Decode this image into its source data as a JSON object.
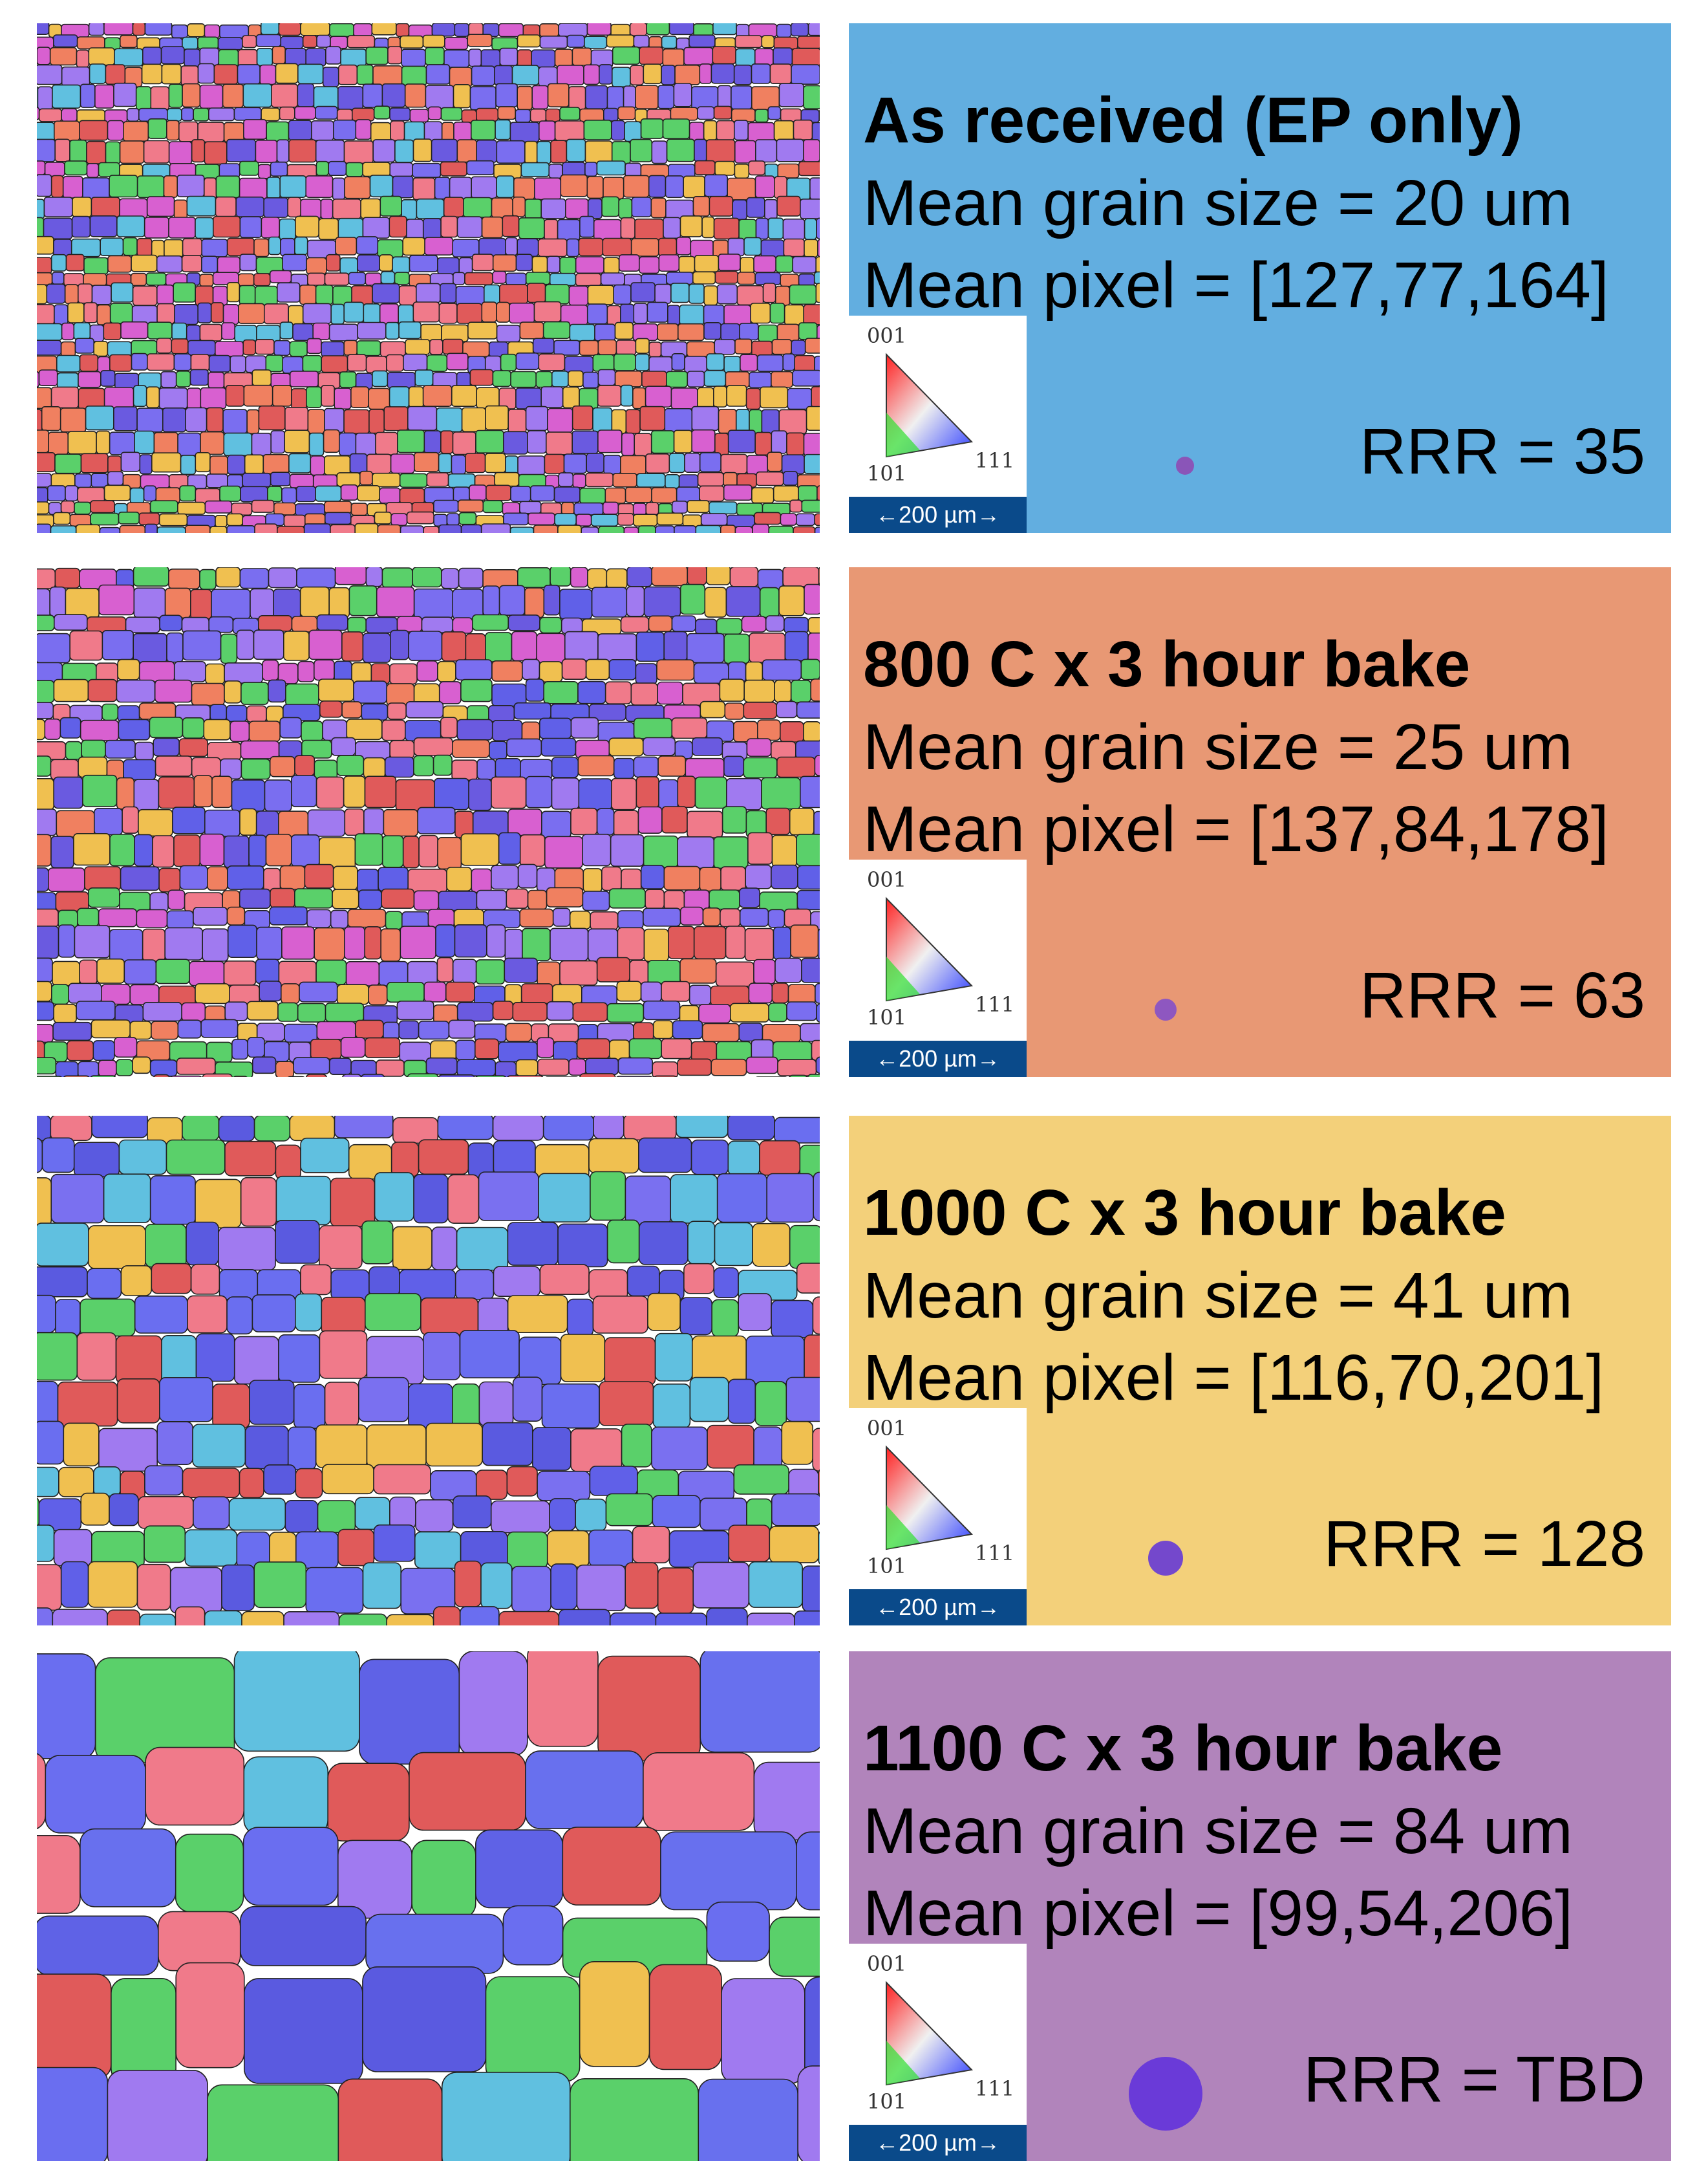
{
  "panels": [
    {
      "title": "As received (EP only)",
      "grain_size": "Mean grain size = 20 um",
      "mean_pixel": "Mean pixel = [127,77,164]",
      "rrr": "RRR = 35",
      "legend": {
        "top": "001",
        "left": "101",
        "right": "111"
      },
      "scale_bar": "←200 µm→"
    },
    {
      "title": "800 C x 3 hour bake",
      "grain_size": "Mean grain size = 25 um",
      "mean_pixel": "Mean pixel = [137,84,178]",
      "rrr": "RRR = 63",
      "legend": {
        "top": "001",
        "left": "101",
        "right": "111"
      },
      "scale_bar": "←200 µm→"
    },
    {
      "title": "1000 C x 3 hour bake",
      "grain_size": "Mean grain size = 41 um",
      "mean_pixel": "Mean pixel = [116,70,201]",
      "rrr": "RRR = 128",
      "legend": {
        "top": "001",
        "left": "101",
        "right": "111"
      },
      "scale_bar": "←200 µm→"
    },
    {
      "title": "1100 C x 3 hour bake",
      "grain_size": "Mean grain size = 84 um",
      "mean_pixel": "Mean pixel = [99,54,206]",
      "rrr": "RRR = TBD",
      "legend": {
        "top": "001",
        "left": "101",
        "right": "111"
      },
      "scale_bar": "←200 µm→"
    }
  ]
}
